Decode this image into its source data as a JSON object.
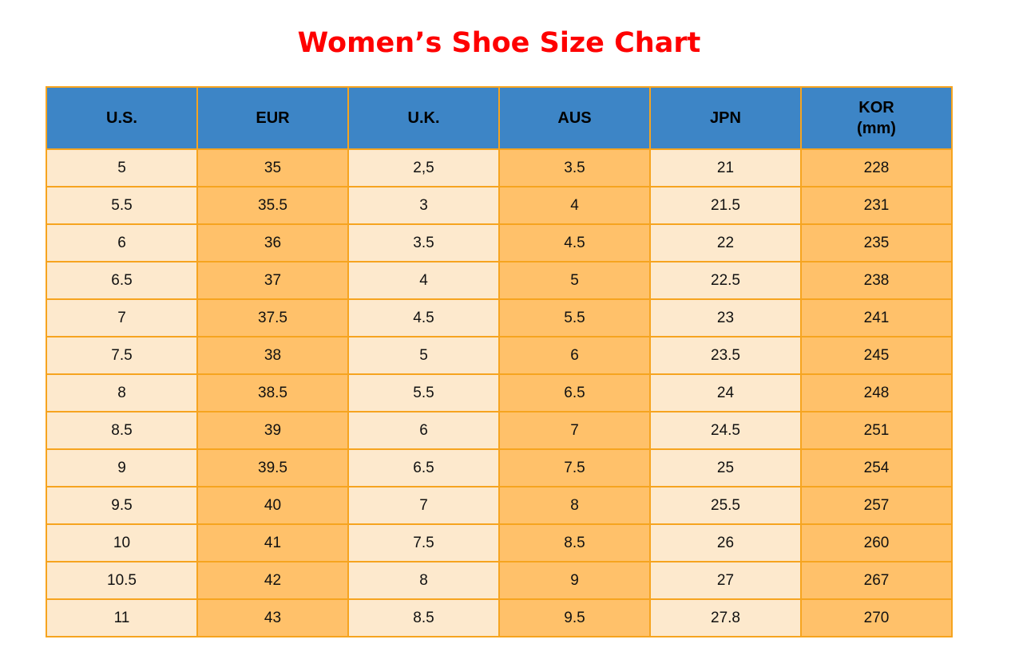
{
  "page": {
    "title": "Women’s Shoe Size Chart"
  },
  "table": {
    "headers": [
      "U.S.",
      "EUR",
      "U.K.",
      "AUS",
      "JPN",
      "KOR\n(mm)"
    ],
    "colors": {
      "title_color": "#fe0000",
      "header_bg": "#3d85c6",
      "header_text": "#000000",
      "col_light": "#fde9cd",
      "col_orange": "#ffc16a",
      "border": "#f6a41f",
      "cell_text": "#111111"
    }
  },
  "chart_data": {
    "type": "table",
    "title": "Women’s Shoe Size Chart",
    "columns": [
      "U.S.",
      "EUR",
      "U.K.",
      "AUS",
      "JPN",
      "KOR (mm)"
    ],
    "rows": [
      [
        "5",
        "35",
        "2,5",
        "3.5",
        "21",
        "228"
      ],
      [
        "5.5",
        "35.5",
        "3",
        "4",
        "21.5",
        "231"
      ],
      [
        "6",
        "36",
        "3.5",
        "4.5",
        "22",
        "235"
      ],
      [
        "6.5",
        "37",
        "4",
        "5",
        "22.5",
        "238"
      ],
      [
        "7",
        "37.5",
        "4.5",
        "5.5",
        "23",
        "241"
      ],
      [
        "7.5",
        "38",
        "5",
        "6",
        "23.5",
        "245"
      ],
      [
        "8",
        "38.5",
        "5.5",
        "6.5",
        "24",
        "248"
      ],
      [
        "8.5",
        "39",
        "6",
        "7",
        "24.5",
        "251"
      ],
      [
        "9",
        "39.5",
        "6.5",
        "7.5",
        "25",
        "254"
      ],
      [
        "9.5",
        "40",
        "7",
        "8",
        "25.5",
        "257"
      ],
      [
        "10",
        "41",
        "7.5",
        "8.5",
        "26",
        "260"
      ],
      [
        "10.5",
        "42",
        "8",
        "9",
        "27",
        "267"
      ],
      [
        "11",
        "43",
        "8.5",
        "9.5",
        "27.8",
        "270"
      ]
    ],
    "layout": {
      "column_fill_pattern": [
        "light",
        "orange",
        "light",
        "orange",
        "light",
        "orange"
      ],
      "grid": true
    }
  }
}
